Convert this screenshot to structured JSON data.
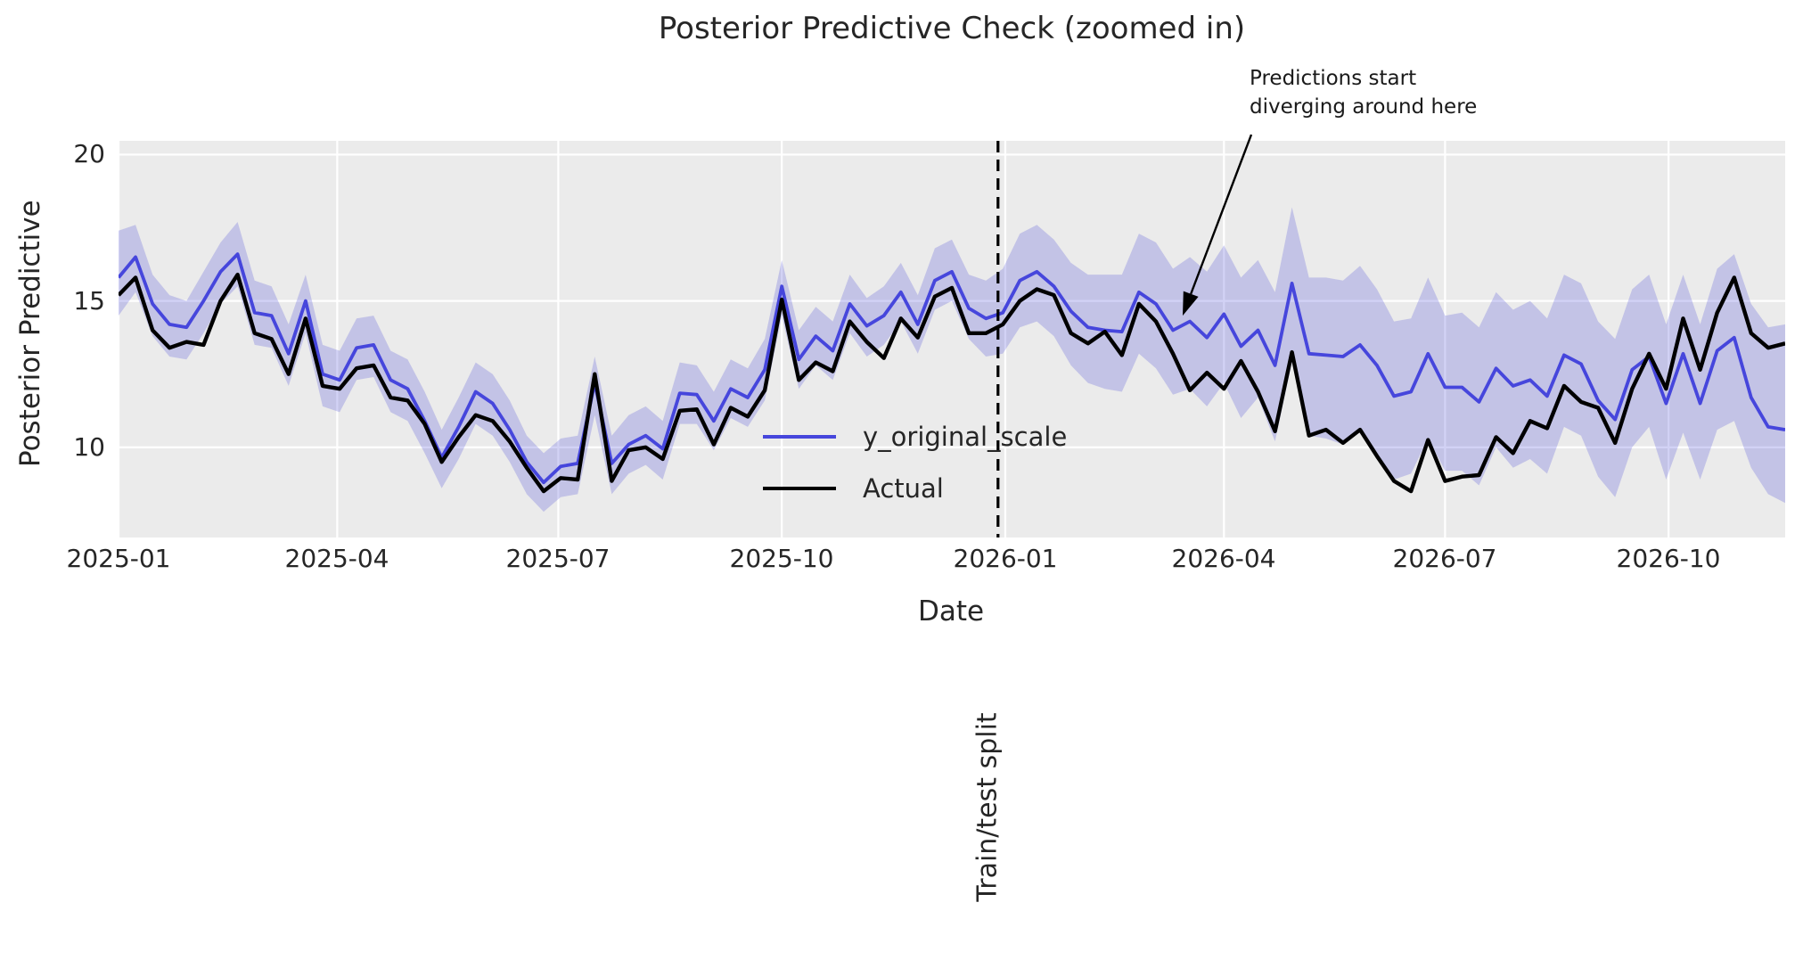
{
  "title": "Posterior Predictive Check (zoomed in)",
  "colors": {
    "figure_background": "#ffffff",
    "axes_background": "#ebebeb",
    "gridline": "#ffffff",
    "predicted_line": "#4646dc",
    "actual_line": "#000000",
    "band_fill": "rgba(95,95,219,0.28)",
    "split_line": "#000000",
    "text": "#262626"
  },
  "chart_data": {
    "type": "line",
    "title": "Posterior Predictive Check (zoomed in)",
    "xlabel": "Date",
    "ylabel": "Posterior Predictive",
    "grid": true,
    "x_start_day": 0,
    "x_step_days": 7,
    "xlim_days": [
      0,
      686
    ],
    "ylim": [
      6.92,
      20.47
    ],
    "yticks": [
      10,
      15,
      20
    ],
    "xticks": [
      {
        "day": 0,
        "label": "2025-01"
      },
      {
        "day": 90,
        "label": "2025-04"
      },
      {
        "day": 181,
        "label": "2025-07"
      },
      {
        "day": 273,
        "label": "2025-10"
      },
      {
        "day": 365,
        "label": "2026-01"
      },
      {
        "day": 455,
        "label": "2026-04"
      },
      {
        "day": 546,
        "label": "2026-07"
      },
      {
        "day": 638,
        "label": "2026-10"
      }
    ],
    "series": [
      {
        "name": "y_original_scale",
        "color": "#4646dc",
        "values": [
          15.8,
          16.5,
          14.9,
          14.2,
          14.1,
          15.0,
          16.0,
          16.6,
          14.6,
          14.5,
          13.2,
          15.0,
          12.5,
          12.3,
          13.4,
          13.5,
          12.3,
          12.0,
          10.9,
          9.65,
          10.7,
          11.9,
          11.5,
          10.6,
          9.5,
          8.8,
          9.35,
          9.45,
          12.2,
          9.45,
          10.1,
          10.4,
          9.95,
          11.85,
          11.8,
          10.9,
          12.0,
          11.7,
          12.65,
          15.5,
          13.0,
          13.8,
          13.3,
          14.9,
          14.15,
          14.5,
          15.3,
          14.2,
          15.7,
          16.0,
          14.75,
          14.4,
          14.6,
          15.7,
          16.0,
          15.5,
          14.65,
          14.1,
          14.0,
          13.95,
          15.3,
          14.9,
          14.0,
          14.3,
          13.75,
          14.55,
          13.45,
          14.0,
          12.8,
          15.6,
          13.2,
          13.15,
          13.1,
          13.5,
          12.8,
          11.75,
          11.9,
          13.2,
          12.05,
          12.05,
          11.55,
          12.7,
          12.1,
          12.3,
          11.75,
          13.15,
          12.85,
          11.6,
          10.95,
          12.65,
          13.1,
          11.5,
          13.2,
          11.5,
          13.3,
          13.75,
          11.7,
          10.7,
          10.6
        ]
      },
      {
        "name": "Actual",
        "color": "#000000",
        "values": [
          15.2,
          15.8,
          14.0,
          13.4,
          13.6,
          13.5,
          15.0,
          15.9,
          13.9,
          13.7,
          12.5,
          14.4,
          12.1,
          12.0,
          12.7,
          12.8,
          11.7,
          11.6,
          10.8,
          9.5,
          10.35,
          11.1,
          10.9,
          10.2,
          9.3,
          8.5,
          8.95,
          8.9,
          12.5,
          8.85,
          9.9,
          10.0,
          9.6,
          11.25,
          11.3,
          10.1,
          11.35,
          11.05,
          11.95,
          15.05,
          12.3,
          12.9,
          12.6,
          14.3,
          13.6,
          13.05,
          14.4,
          13.75,
          15.15,
          15.45,
          13.9,
          13.9,
          14.2,
          15.0,
          15.4,
          15.2,
          13.9,
          13.55,
          13.95,
          13.15,
          14.9,
          14.3,
          13.2,
          11.95,
          12.55,
          12.0,
          12.95,
          11.9,
          10.55,
          13.25,
          10.4,
          10.6,
          10.15,
          10.6,
          9.7,
          8.85,
          8.5,
          10.25,
          8.85,
          9.0,
          9.05,
          10.35,
          9.8,
          10.9,
          10.65,
          12.1,
          11.55,
          11.35,
          10.15,
          12.0,
          13.2,
          12.0,
          14.4,
          12.65,
          14.6,
          15.8,
          13.9,
          13.4,
          13.55
        ]
      }
    ],
    "band": {
      "name": "posterior predictive interval",
      "color": "rgba(95,95,219,0.28)",
      "upper": [
        17.4,
        17.6,
        15.9,
        15.2,
        15.0,
        16.0,
        17.0,
        17.7,
        15.7,
        15.5,
        14.2,
        15.9,
        13.5,
        13.3,
        14.4,
        14.5,
        13.3,
        13.0,
        11.9,
        10.6,
        11.7,
        12.9,
        12.5,
        11.6,
        10.4,
        9.8,
        10.3,
        10.4,
        13.1,
        10.4,
        11.1,
        11.4,
        10.9,
        12.9,
        12.8,
        11.9,
        13.0,
        12.7,
        13.7,
        16.4,
        14.0,
        14.8,
        14.3,
        15.9,
        15.1,
        15.5,
        16.3,
        15.2,
        16.8,
        17.1,
        15.9,
        15.7,
        16.1,
        17.3,
        17.6,
        17.1,
        16.3,
        15.9,
        15.9,
        15.9,
        17.3,
        17.0,
        16.1,
        16.5,
        16.0,
        16.9,
        15.8,
        16.4,
        15.3,
        18.2,
        15.8,
        15.8,
        15.7,
        16.2,
        15.4,
        14.3,
        14.4,
        15.8,
        14.5,
        14.6,
        14.1,
        15.3,
        14.7,
        15.0,
        14.4,
        15.9,
        15.6,
        14.3,
        13.7,
        15.4,
        15.9,
        14.2,
        15.9,
        14.2,
        16.1,
        16.6,
        14.9,
        14.1,
        14.2
      ],
      "lower": [
        14.5,
        15.3,
        13.8,
        13.1,
        13.0,
        13.9,
        14.9,
        15.5,
        13.5,
        13.4,
        12.1,
        13.9,
        11.4,
        11.2,
        12.3,
        12.4,
        11.2,
        10.9,
        9.8,
        8.6,
        9.6,
        10.8,
        10.4,
        9.5,
        8.4,
        7.8,
        8.3,
        8.4,
        11.1,
        8.4,
        9.1,
        9.4,
        8.9,
        10.8,
        10.8,
        9.9,
        11.0,
        10.7,
        11.6,
        14.5,
        12.0,
        12.8,
        12.3,
        13.9,
        13.1,
        13.5,
        14.3,
        13.2,
        14.7,
        15.0,
        13.7,
        13.1,
        13.2,
        14.1,
        14.3,
        13.8,
        12.8,
        12.2,
        12.0,
        11.9,
        13.2,
        12.7,
        11.8,
        12.0,
        11.4,
        12.2,
        11.0,
        11.7,
        10.2,
        12.9,
        10.4,
        10.3,
        10.1,
        10.6,
        9.8,
        8.9,
        9.1,
        10.3,
        9.2,
        9.2,
        8.7,
        10.0,
        9.3,
        9.6,
        9.1,
        10.7,
        10.4,
        9.0,
        8.3,
        10.0,
        10.7,
        8.9,
        10.5,
        8.9,
        10.6,
        10.9,
        9.3,
        8.4,
        8.1
      ]
    },
    "split_line": {
      "day": 362,
      "label": "Train/test split",
      "style": "dashed",
      "color": "#000000"
    },
    "annotation": {
      "lines": [
        "Predictions start",
        "diverging around here"
      ],
      "arrow_tip_day": 438,
      "arrow_tip_value": 14.5
    },
    "legend": {
      "position": "lower-center-left",
      "frame": false
    }
  }
}
